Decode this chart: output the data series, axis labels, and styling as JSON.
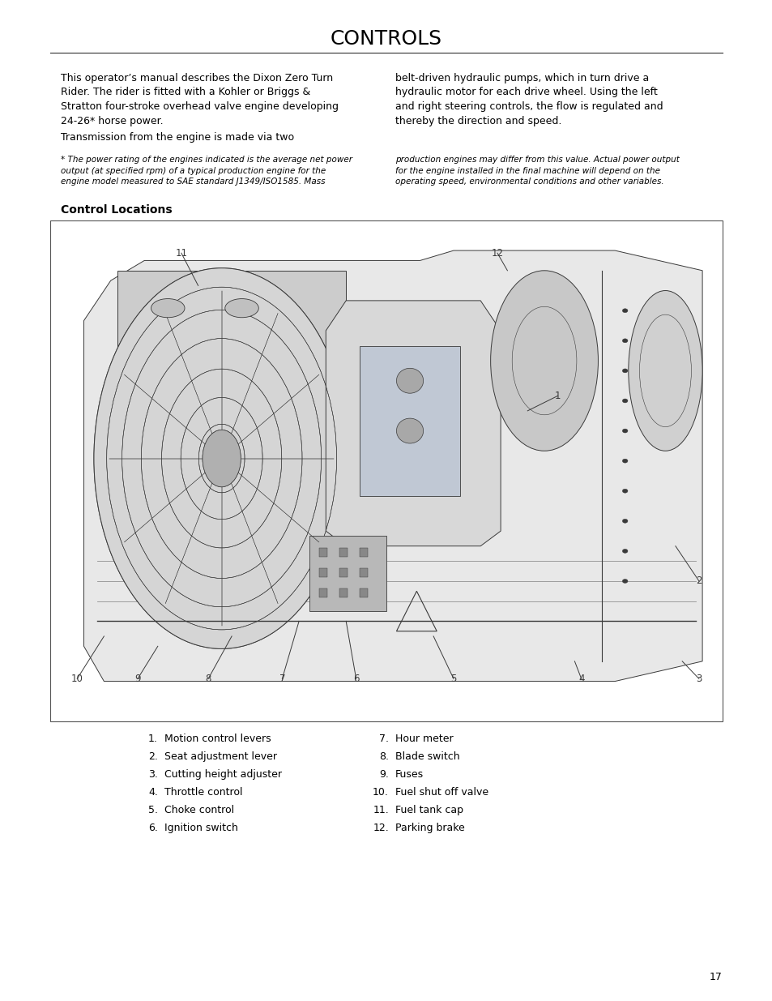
{
  "title": "CONTROLS",
  "bg_color": "#ffffff",
  "text_color": "#000000",
  "page_number": "17",
  "para1_left": "This operator’s manual describes the Dixon Zero Turn\nRider. The rider is fitted with a Kohler or Briggs &\nStratton four-stroke overhead valve engine developing\n24-26* horse power.",
  "para1_right": "belt-driven hydraulic pumps, which in turn drive a\nhydraulic motor for each drive wheel. Using the left\nand right steering controls, the flow is regulated and\nthereby the direction and speed.",
  "para2_left": "Transmission from the engine is made via two",
  "footnote_left": "* The power rating of the engines indicated is the average net power\noutput (at specified rpm) of a typical production engine for the\nengine model measured to SAE standard J1349/ISO1585. Mass",
  "footnote_right": "production engines may differ from this value. Actual power output\nfor the engine installed in the final machine will depend on the\noperating speed, environmental conditions and other variables.",
  "section_heading": "Control Locations",
  "list_left_nums": [
    "1.",
    "2.",
    "3.",
    "4.",
    "5.",
    "6."
  ],
  "list_left_text": [
    "Motion control levers",
    "Seat adjustment lever",
    "Cutting height adjuster",
    "Throttle control",
    "Choke control",
    "Ignition switch"
  ],
  "list_right_nums": [
    "7.",
    "8.",
    "9.",
    "10.",
    "11.",
    "12."
  ],
  "list_right_text": [
    "Hour meter",
    "Blade switch",
    "Fuses",
    "Fuel shut off valve",
    "Fuel tank cap",
    "Parking brake"
  ],
  "title_fontsize": 18,
  "body_fontsize": 9,
  "footnote_fontsize": 7.5,
  "heading_fontsize": 10,
  "list_fontsize": 9,
  "page_num_fontsize": 9
}
